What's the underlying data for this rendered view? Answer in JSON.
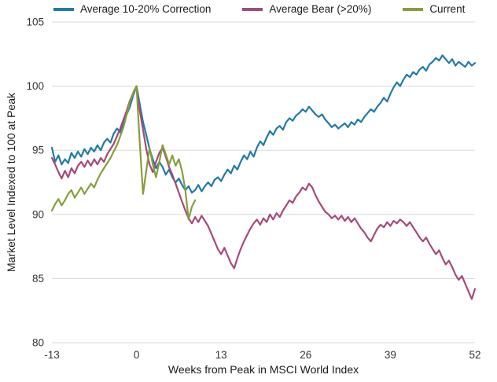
{
  "colors": {
    "grid": "#d8d8d8",
    "axis_text": "#333333",
    "background": "#ffffff"
  },
  "chart_data": {
    "type": "line",
    "title": "",
    "xlabel": "Weeks from Peak in MSCI World Index",
    "ylabel": "Market Level Indexed to 100 at Peak",
    "xlim": [
      -13,
      52
    ],
    "ylim": [
      80,
      105
    ],
    "xticks": [
      -13,
      0,
      13,
      26,
      39,
      52
    ],
    "yticks": [
      80,
      85,
      90,
      95,
      100,
      105
    ],
    "grid": "horizontal",
    "legend_position": "top",
    "series": [
      {
        "name": "Average 10-20% Correction",
        "color": "#1f7ba8",
        "points": [
          [
            -13,
            95.2
          ],
          [
            -12.5,
            94.1
          ],
          [
            -12,
            94.6
          ],
          [
            -11.5,
            93.9
          ],
          [
            -11,
            94.3
          ],
          [
            -10.5,
            94.0
          ],
          [
            -10,
            94.8
          ],
          [
            -9.5,
            94.4
          ],
          [
            -9,
            94.9
          ],
          [
            -8.5,
            94.5
          ],
          [
            -8,
            95.1
          ],
          [
            -7.5,
            94.7
          ],
          [
            -7,
            95.2
          ],
          [
            -6.5,
            94.9
          ],
          [
            -6,
            95.4
          ],
          [
            -5.5,
            95.0
          ],
          [
            -5,
            95.6
          ],
          [
            -4.5,
            95.9
          ],
          [
            -4,
            95.6
          ],
          [
            -3.5,
            96.3
          ],
          [
            -3,
            96.7
          ],
          [
            -2.5,
            96.4
          ],
          [
            -2,
            97.1
          ],
          [
            -1.5,
            97.8
          ],
          [
            -1,
            98.4
          ],
          [
            -0.5,
            99.3
          ],
          [
            0,
            100.0
          ],
          [
            0.5,
            98.6
          ],
          [
            1,
            97.2
          ],
          [
            1.5,
            96.2
          ],
          [
            2,
            95.1
          ],
          [
            2.5,
            94.3
          ],
          [
            3,
            93.6
          ],
          [
            3.5,
            94.1
          ],
          [
            4,
            93.7
          ],
          [
            4.5,
            93.1
          ],
          [
            5,
            93.5
          ],
          [
            5.5,
            92.9
          ],
          [
            6,
            92.5
          ],
          [
            6.5,
            92.8
          ],
          [
            7,
            92.3
          ],
          [
            7.5,
            91.9
          ],
          [
            8,
            92.2
          ],
          [
            8.5,
            91.7
          ],
          [
            9,
            91.9
          ],
          [
            9.5,
            92.3
          ],
          [
            10,
            91.8
          ],
          [
            10.5,
            92.2
          ],
          [
            11,
            92.5
          ],
          [
            11.5,
            92.2
          ],
          [
            12,
            92.7
          ],
          [
            12.5,
            92.9
          ],
          [
            13,
            92.6
          ],
          [
            13.5,
            93.1
          ],
          [
            14,
            93.5
          ],
          [
            14.5,
            93.2
          ],
          [
            15,
            93.8
          ],
          [
            15.5,
            93.5
          ],
          [
            16,
            94.1
          ],
          [
            16.5,
            94.6
          ],
          [
            17,
            94.3
          ],
          [
            17.5,
            94.9
          ],
          [
            18,
            94.5
          ],
          [
            18.5,
            95.2
          ],
          [
            19,
            95.7
          ],
          [
            19.5,
            95.4
          ],
          [
            20,
            96.0
          ],
          [
            20.5,
            96.5
          ],
          [
            21,
            96.2
          ],
          [
            21.5,
            96.7
          ],
          [
            22,
            96.9
          ],
          [
            22.5,
            96.6
          ],
          [
            23,
            97.2
          ],
          [
            23.5,
            97.5
          ],
          [
            24,
            97.3
          ],
          [
            24.5,
            97.7
          ],
          [
            25,
            97.9
          ],
          [
            25.5,
            98.2
          ],
          [
            26,
            98.0
          ],
          [
            26.5,
            98.4
          ],
          [
            27,
            98.1
          ],
          [
            27.5,
            97.8
          ],
          [
            28,
            97.6
          ],
          [
            28.5,
            97.8
          ],
          [
            29,
            97.4
          ],
          [
            29.5,
            97.1
          ],
          [
            30,
            96.8
          ],
          [
            30.5,
            97.0
          ],
          [
            31,
            96.7
          ],
          [
            31.5,
            96.9
          ],
          [
            32,
            97.1
          ],
          [
            32.5,
            96.8
          ],
          [
            33,
            97.2
          ],
          [
            33.5,
            97.0
          ],
          [
            34,
            97.4
          ],
          [
            34.5,
            97.2
          ],
          [
            35,
            97.6
          ],
          [
            35.5,
            97.9
          ],
          [
            36,
            98.2
          ],
          [
            36.5,
            98.0
          ],
          [
            37,
            98.4
          ],
          [
            37.5,
            98.7
          ],
          [
            38,
            99.1
          ],
          [
            38.5,
            98.8
          ],
          [
            39,
            99.4
          ],
          [
            39.5,
            99.9
          ],
          [
            40,
            100.3
          ],
          [
            40.5,
            100.0
          ],
          [
            41,
            100.5
          ],
          [
            41.5,
            100.9
          ],
          [
            42,
            100.7
          ],
          [
            42.5,
            101.1
          ],
          [
            43,
            100.9
          ],
          [
            43.5,
            101.3
          ],
          [
            44,
            101.5
          ],
          [
            44.5,
            101.2
          ],
          [
            45,
            101.7
          ],
          [
            45.5,
            101.9
          ],
          [
            46,
            102.2
          ],
          [
            46.5,
            102.0
          ],
          [
            47,
            102.4
          ],
          [
            47.5,
            102.1
          ],
          [
            48,
            101.8
          ],
          [
            48.5,
            102.1
          ],
          [
            49,
            101.6
          ],
          [
            49.5,
            101.9
          ],
          [
            50,
            101.7
          ],
          [
            50.5,
            101.5
          ],
          [
            51,
            101.9
          ],
          [
            51.5,
            101.6
          ],
          [
            52,
            101.8
          ]
        ]
      },
      {
        "name": "Average Bear (>20%)",
        "color": "#a6497c",
        "points": [
          [
            -13,
            94.4
          ],
          [
            -12.5,
            93.9
          ],
          [
            -12,
            93.3
          ],
          [
            -11.5,
            92.8
          ],
          [
            -11,
            93.4
          ],
          [
            -10.5,
            92.9
          ],
          [
            -10,
            93.6
          ],
          [
            -9.5,
            93.2
          ],
          [
            -9,
            93.8
          ],
          [
            -8.5,
            94.1
          ],
          [
            -8,
            93.7
          ],
          [
            -7.5,
            94.2
          ],
          [
            -7,
            93.8
          ],
          [
            -6.5,
            94.3
          ],
          [
            -6,
            93.9
          ],
          [
            -5.5,
            94.4
          ],
          [
            -5,
            94.1
          ],
          [
            -4.5,
            94.7
          ],
          [
            -4,
            95.1
          ],
          [
            -3.5,
            95.5
          ],
          [
            -3,
            96.1
          ],
          [
            -2.5,
            96.7
          ],
          [
            -2,
            97.4
          ],
          [
            -1.5,
            98.1
          ],
          [
            -1,
            98.9
          ],
          [
            -0.5,
            99.5
          ],
          [
            0,
            100.0
          ],
          [
            0.5,
            98.1
          ],
          [
            1,
            96.6
          ],
          [
            1.5,
            95.1
          ],
          [
            2,
            93.9
          ],
          [
            2.5,
            93.3
          ],
          [
            3,
            94.1
          ],
          [
            3.5,
            94.8
          ],
          [
            4,
            95.2
          ],
          [
            4.5,
            94.5
          ],
          [
            5,
            93.7
          ],
          [
            5.5,
            93.1
          ],
          [
            6,
            92.4
          ],
          [
            6.5,
            91.7
          ],
          [
            7,
            91.0
          ],
          [
            7.5,
            90.3
          ],
          [
            8,
            89.7
          ],
          [
            8.5,
            89.3
          ],
          [
            9,
            89.8
          ],
          [
            9.5,
            89.4
          ],
          [
            10,
            89.9
          ],
          [
            10.5,
            89.5
          ],
          [
            11,
            89.1
          ],
          [
            11.5,
            88.5
          ],
          [
            12,
            87.9
          ],
          [
            12.5,
            87.3
          ],
          [
            13,
            86.9
          ],
          [
            13.5,
            87.4
          ],
          [
            14,
            86.8
          ],
          [
            14.5,
            86.2
          ],
          [
            15,
            85.8
          ],
          [
            15.5,
            86.6
          ],
          [
            16,
            87.3
          ],
          [
            16.5,
            87.9
          ],
          [
            17,
            88.4
          ],
          [
            17.5,
            88.9
          ],
          [
            18,
            89.3
          ],
          [
            18.5,
            89.6
          ],
          [
            19,
            89.2
          ],
          [
            19.5,
            89.7
          ],
          [
            20,
            89.4
          ],
          [
            20.5,
            90.0
          ],
          [
            21,
            89.6
          ],
          [
            21.5,
            90.1
          ],
          [
            22,
            89.8
          ],
          [
            22.5,
            90.3
          ],
          [
            23,
            90.7
          ],
          [
            23.5,
            91.1
          ],
          [
            24,
            90.9
          ],
          [
            24.5,
            91.4
          ],
          [
            25,
            91.7
          ],
          [
            25.5,
            92.1
          ],
          [
            26,
            91.9
          ],
          [
            26.5,
            92.4
          ],
          [
            27,
            92.1
          ],
          [
            27.5,
            91.5
          ],
          [
            28,
            91.0
          ],
          [
            28.5,
            90.6
          ],
          [
            29,
            90.2
          ],
          [
            29.5,
            90.0
          ],
          [
            30,
            89.7
          ],
          [
            30.5,
            89.9
          ],
          [
            31,
            89.6
          ],
          [
            31.5,
            89.9
          ],
          [
            32,
            89.5
          ],
          [
            32.5,
            89.8
          ],
          [
            33,
            89.4
          ],
          [
            33.5,
            89.7
          ],
          [
            34,
            89.3
          ],
          [
            34.5,
            88.9
          ],
          [
            35,
            88.6
          ],
          [
            35.5,
            88.2
          ],
          [
            36,
            87.9
          ],
          [
            36.5,
            88.4
          ],
          [
            37,
            88.9
          ],
          [
            37.5,
            89.2
          ],
          [
            38,
            89.0
          ],
          [
            38.5,
            89.4
          ],
          [
            39,
            89.1
          ],
          [
            39.5,
            89.5
          ],
          [
            40,
            89.3
          ],
          [
            40.5,
            89.6
          ],
          [
            41,
            89.4
          ],
          [
            41.5,
            89.1
          ],
          [
            42,
            89.4
          ],
          [
            42.5,
            89.0
          ],
          [
            43,
            88.6
          ],
          [
            43.5,
            88.2
          ],
          [
            44,
            87.9
          ],
          [
            44.5,
            88.2
          ],
          [
            45,
            87.7
          ],
          [
            45.5,
            87.3
          ],
          [
            46,
            86.9
          ],
          [
            46.5,
            87.2
          ],
          [
            47,
            86.6
          ],
          [
            47.5,
            86.1
          ],
          [
            48,
            86.4
          ],
          [
            48.5,
            85.9
          ],
          [
            49,
            85.3
          ],
          [
            49.5,
            84.9
          ],
          [
            50,
            85.2
          ],
          [
            50.5,
            84.6
          ],
          [
            51,
            84.0
          ],
          [
            51.5,
            83.4
          ],
          [
            52,
            84.2
          ]
        ]
      },
      {
        "name": "Current",
        "color": "#879e3c",
        "points": [
          [
            -13,
            90.3
          ],
          [
            -12.5,
            90.8
          ],
          [
            -12,
            91.2
          ],
          [
            -11.5,
            90.7
          ],
          [
            -11,
            91.1
          ],
          [
            -10.5,
            91.6
          ],
          [
            -10,
            91.9
          ],
          [
            -9.5,
            91.3
          ],
          [
            -9,
            91.7
          ],
          [
            -8.5,
            92.1
          ],
          [
            -8,
            91.6
          ],
          [
            -7.5,
            92.0
          ],
          [
            -7,
            92.4
          ],
          [
            -6.5,
            92.1
          ],
          [
            -6,
            92.7
          ],
          [
            -5.5,
            93.2
          ],
          [
            -5,
            93.6
          ],
          [
            -4.5,
            94.0
          ],
          [
            -4,
            94.4
          ],
          [
            -3.5,
            94.9
          ],
          [
            -3,
            95.4
          ],
          [
            -2.5,
            96.1
          ],
          [
            -2,
            96.8
          ],
          [
            -1.5,
            97.8
          ],
          [
            -1,
            98.8
          ],
          [
            -0.5,
            99.5
          ],
          [
            0,
            100.0
          ],
          [
            0.5,
            95.6
          ],
          [
            1,
            91.6
          ],
          [
            1.5,
            93.4
          ],
          [
            2,
            95.2
          ],
          [
            2.5,
            93.9
          ],
          [
            3,
            92.9
          ],
          [
            3.5,
            94.1
          ],
          [
            4,
            95.4
          ],
          [
            4.5,
            94.7
          ],
          [
            5,
            93.9
          ],
          [
            5.5,
            94.6
          ],
          [
            6,
            93.8
          ],
          [
            6.5,
            94.3
          ],
          [
            7,
            93.4
          ],
          [
            7.5,
            91.9
          ],
          [
            8,
            89.6
          ],
          [
            8.5,
            90.6
          ],
          [
            9,
            91.1
          ]
        ]
      }
    ]
  }
}
